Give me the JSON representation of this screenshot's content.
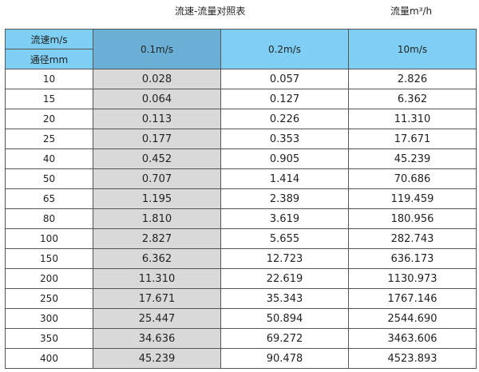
{
  "title": "流速-流量对照表",
  "unit_label": "流量m³/h",
  "header": {
    "velocity_label": "流速m/s",
    "diameter_label": "通径mm",
    "columns": [
      "0.1m/s",
      "0.2m/s",
      "10m/s"
    ]
  },
  "rows": [
    {
      "dn": "10",
      "values": [
        "0.028",
        "0.057",
        "2.826"
      ]
    },
    {
      "dn": "15",
      "values": [
        "0.064",
        "0.127",
        "6.362"
      ]
    },
    {
      "dn": "20",
      "values": [
        "0.113",
        "0.226",
        "11.310"
      ]
    },
    {
      "dn": "25",
      "values": [
        "0.177",
        "0.353",
        "17.671"
      ]
    },
    {
      "dn": "40",
      "values": [
        "0.452",
        "0.905",
        "45.239"
      ]
    },
    {
      "dn": "50",
      "values": [
        "0.707",
        "1.414",
        "70.686"
      ]
    },
    {
      "dn": "65",
      "values": [
        "1.195",
        "2.389",
        "119.459"
      ]
    },
    {
      "dn": "80",
      "values": [
        "1.810",
        "3.619",
        "180.956"
      ]
    },
    {
      "dn": "100",
      "values": [
        "2.827",
        "5.655",
        "282.743"
      ]
    },
    {
      "dn": "150",
      "values": [
        "6.362",
        "12.723",
        "636.173"
      ]
    },
    {
      "dn": "200",
      "values": [
        "11.310",
        "22.619",
        "1130.973"
      ]
    },
    {
      "dn": "250",
      "values": [
        "17.671",
        "35.343",
        "1767.146"
      ]
    },
    {
      "dn": "300",
      "values": [
        "25.447",
        "50.894",
        "2544.690"
      ]
    },
    {
      "dn": "350",
      "values": [
        "34.636",
        "69.272",
        "3463.606"
      ]
    },
    {
      "dn": "400",
      "values": [
        "45.239",
        "90.478",
        "4523.893"
      ]
    }
  ],
  "colors": {
    "header": "#7fcff5",
    "header_highlight": "#6ab0d6",
    "column_highlight": "#d9d9d9"
  }
}
